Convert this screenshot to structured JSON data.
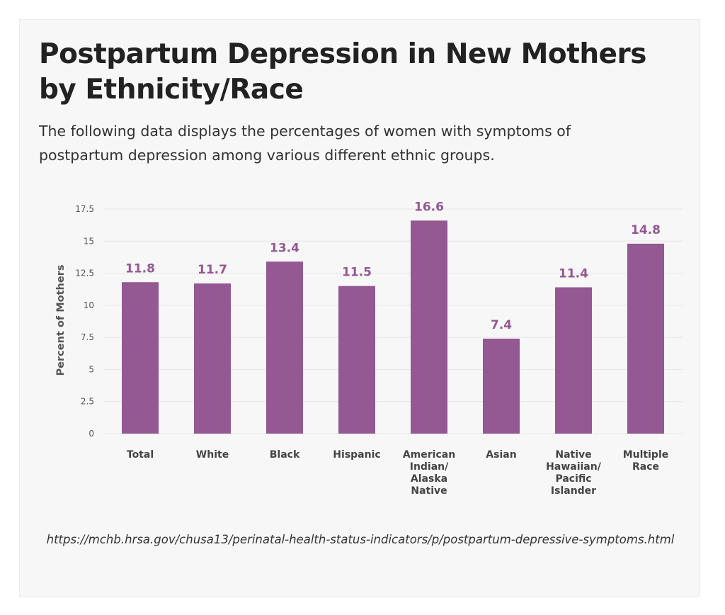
{
  "title": "Postpartum Depression in New Mothers by Ethnicity/Race",
  "subtitle": "The following data displays the percentages of women with symptoms of postpartum depression among various different ethnic groups.",
  "source": "https://mchb.hrsa.gov/chusa13/perinatal-health-status-indicators/p/postpartum-depressive-symptoms.html",
  "colors": {
    "bar": "#945893",
    "label": "#945893",
    "grid": "#e6e6e6"
  },
  "chart_data": {
    "type": "bar",
    "title": "Postpartum Depression in New Mothers by Ethnicity/Race",
    "xlabel": "",
    "ylabel": "Percent of Mothers",
    "ylim": [
      0,
      17.5
    ],
    "yticks": [
      "0",
      "2.5",
      "5",
      "7.5",
      "10",
      "12.5",
      "15",
      "17.5"
    ],
    "grid": true,
    "categories": [
      [
        "Total"
      ],
      [
        "White"
      ],
      [
        "Black"
      ],
      [
        "Hispanic"
      ],
      [
        "American",
        "Indian/",
        "Alaska",
        "Native"
      ],
      [
        "Asian"
      ],
      [
        "Native",
        "Hawaiian/",
        "Pacific",
        "Islander"
      ],
      [
        "Multiple",
        "Race"
      ]
    ],
    "values": [
      11.8,
      11.7,
      13.4,
      11.5,
      16.6,
      7.4,
      11.4,
      14.8
    ],
    "value_labels": [
      "11.8",
      "11.7",
      "13.4",
      "11.5",
      "16.6",
      "7.4",
      "11.4",
      "14.8"
    ]
  }
}
